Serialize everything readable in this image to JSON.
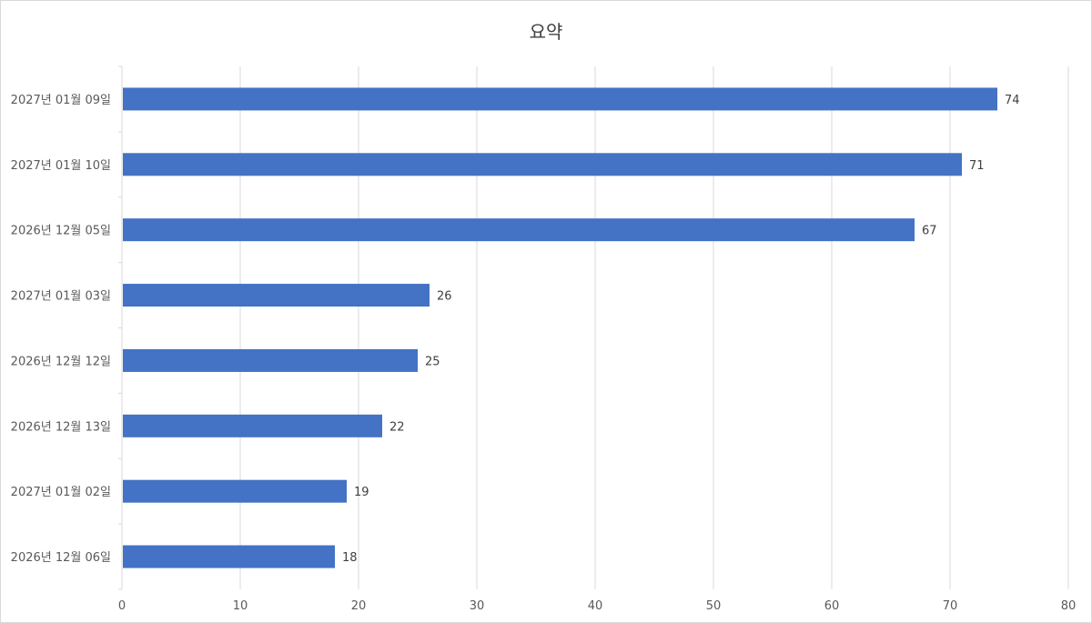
{
  "chart_data": {
    "type": "bar",
    "orientation": "horizontal",
    "title": "요약",
    "categories": [
      "2027년 01월 09일",
      "2027년 01월 10일",
      "2026년 12월 05일",
      "2027년 01월 03일",
      "2026년 12월 12일",
      "2026년 12월 13일",
      "2027년 01월 02일",
      "2026년 12월 06일"
    ],
    "values": [
      74,
      71,
      67,
      26,
      25,
      22,
      19,
      18
    ],
    "xlim": [
      0,
      80
    ],
    "x_ticks": [
      0,
      10,
      20,
      30,
      40,
      50,
      60,
      70,
      80
    ],
    "data_labels": true,
    "grid": "vertical",
    "legend": "none",
    "bar_color": "#4472C4",
    "grid_color": "#d9d9d9",
    "text_color": "#595959"
  }
}
